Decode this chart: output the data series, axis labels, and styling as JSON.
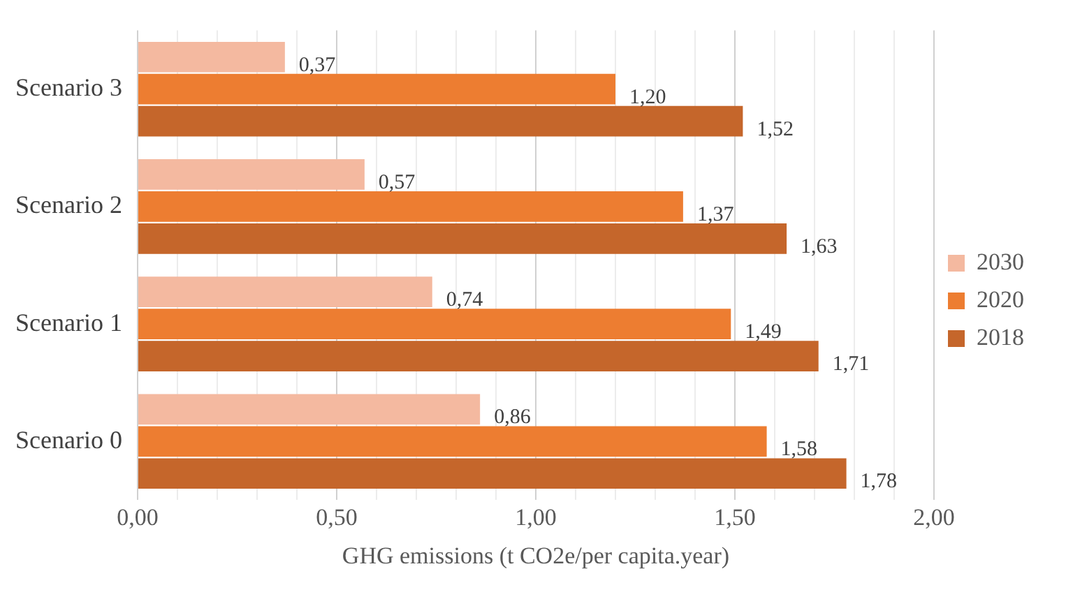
{
  "chart_data": {
    "type": "bar",
    "orientation": "horizontal",
    "xlabel": "GHG emissions (t CO2e/per capita.year)",
    "categories": [
      "Scenario 3",
      "Scenario 2",
      "Scenario 1",
      "Scenario 0"
    ],
    "series": [
      {
        "name": "2030",
        "color": "#f4b9a0",
        "values": [
          0.37,
          0.57,
          0.74,
          0.86
        ],
        "value_labels": [
          "0,37",
          "0,57",
          "0,74",
          "0,86"
        ]
      },
      {
        "name": "2020",
        "color": "#ed7d31",
        "values": [
          1.2,
          1.37,
          1.49,
          1.58
        ],
        "value_labels": [
          "1,20",
          "1,37",
          "1,49",
          "1,58"
        ]
      },
      {
        "name": "2018",
        "color": "#c5662b",
        "values": [
          1.52,
          1.63,
          1.71,
          1.78
        ],
        "value_labels": [
          "1,52",
          "1,63",
          "1,71",
          "1,78"
        ]
      }
    ],
    "xlim": [
      0,
      2
    ],
    "xticks": [
      {
        "value": 0,
        "label": "0,00"
      },
      {
        "value": 0.1,
        "label": null
      },
      {
        "value": 0.2,
        "label": null
      },
      {
        "value": 0.3,
        "label": null
      },
      {
        "value": 0.4,
        "label": null
      },
      {
        "value": 0.5,
        "label": "0,50"
      },
      {
        "value": 0.6,
        "label": null
      },
      {
        "value": 0.7,
        "label": null
      },
      {
        "value": 0.8,
        "label": null
      },
      {
        "value": 0.9,
        "label": null
      },
      {
        "value": 1,
        "label": "1,00"
      },
      {
        "value": 1.1,
        "label": null
      },
      {
        "value": 1.2,
        "label": null
      },
      {
        "value": 1.3,
        "label": null
      },
      {
        "value": 1.4,
        "label": null
      },
      {
        "value": 1.5,
        "label": "1,50"
      },
      {
        "value": 1.6,
        "label": null
      },
      {
        "value": 1.7,
        "label": null
      },
      {
        "value": 1.8,
        "label": null
      },
      {
        "value": 1.9,
        "label": null
      },
      {
        "value": 2,
        "label": "2,00"
      }
    ],
    "grid": "x",
    "legend": "right"
  }
}
